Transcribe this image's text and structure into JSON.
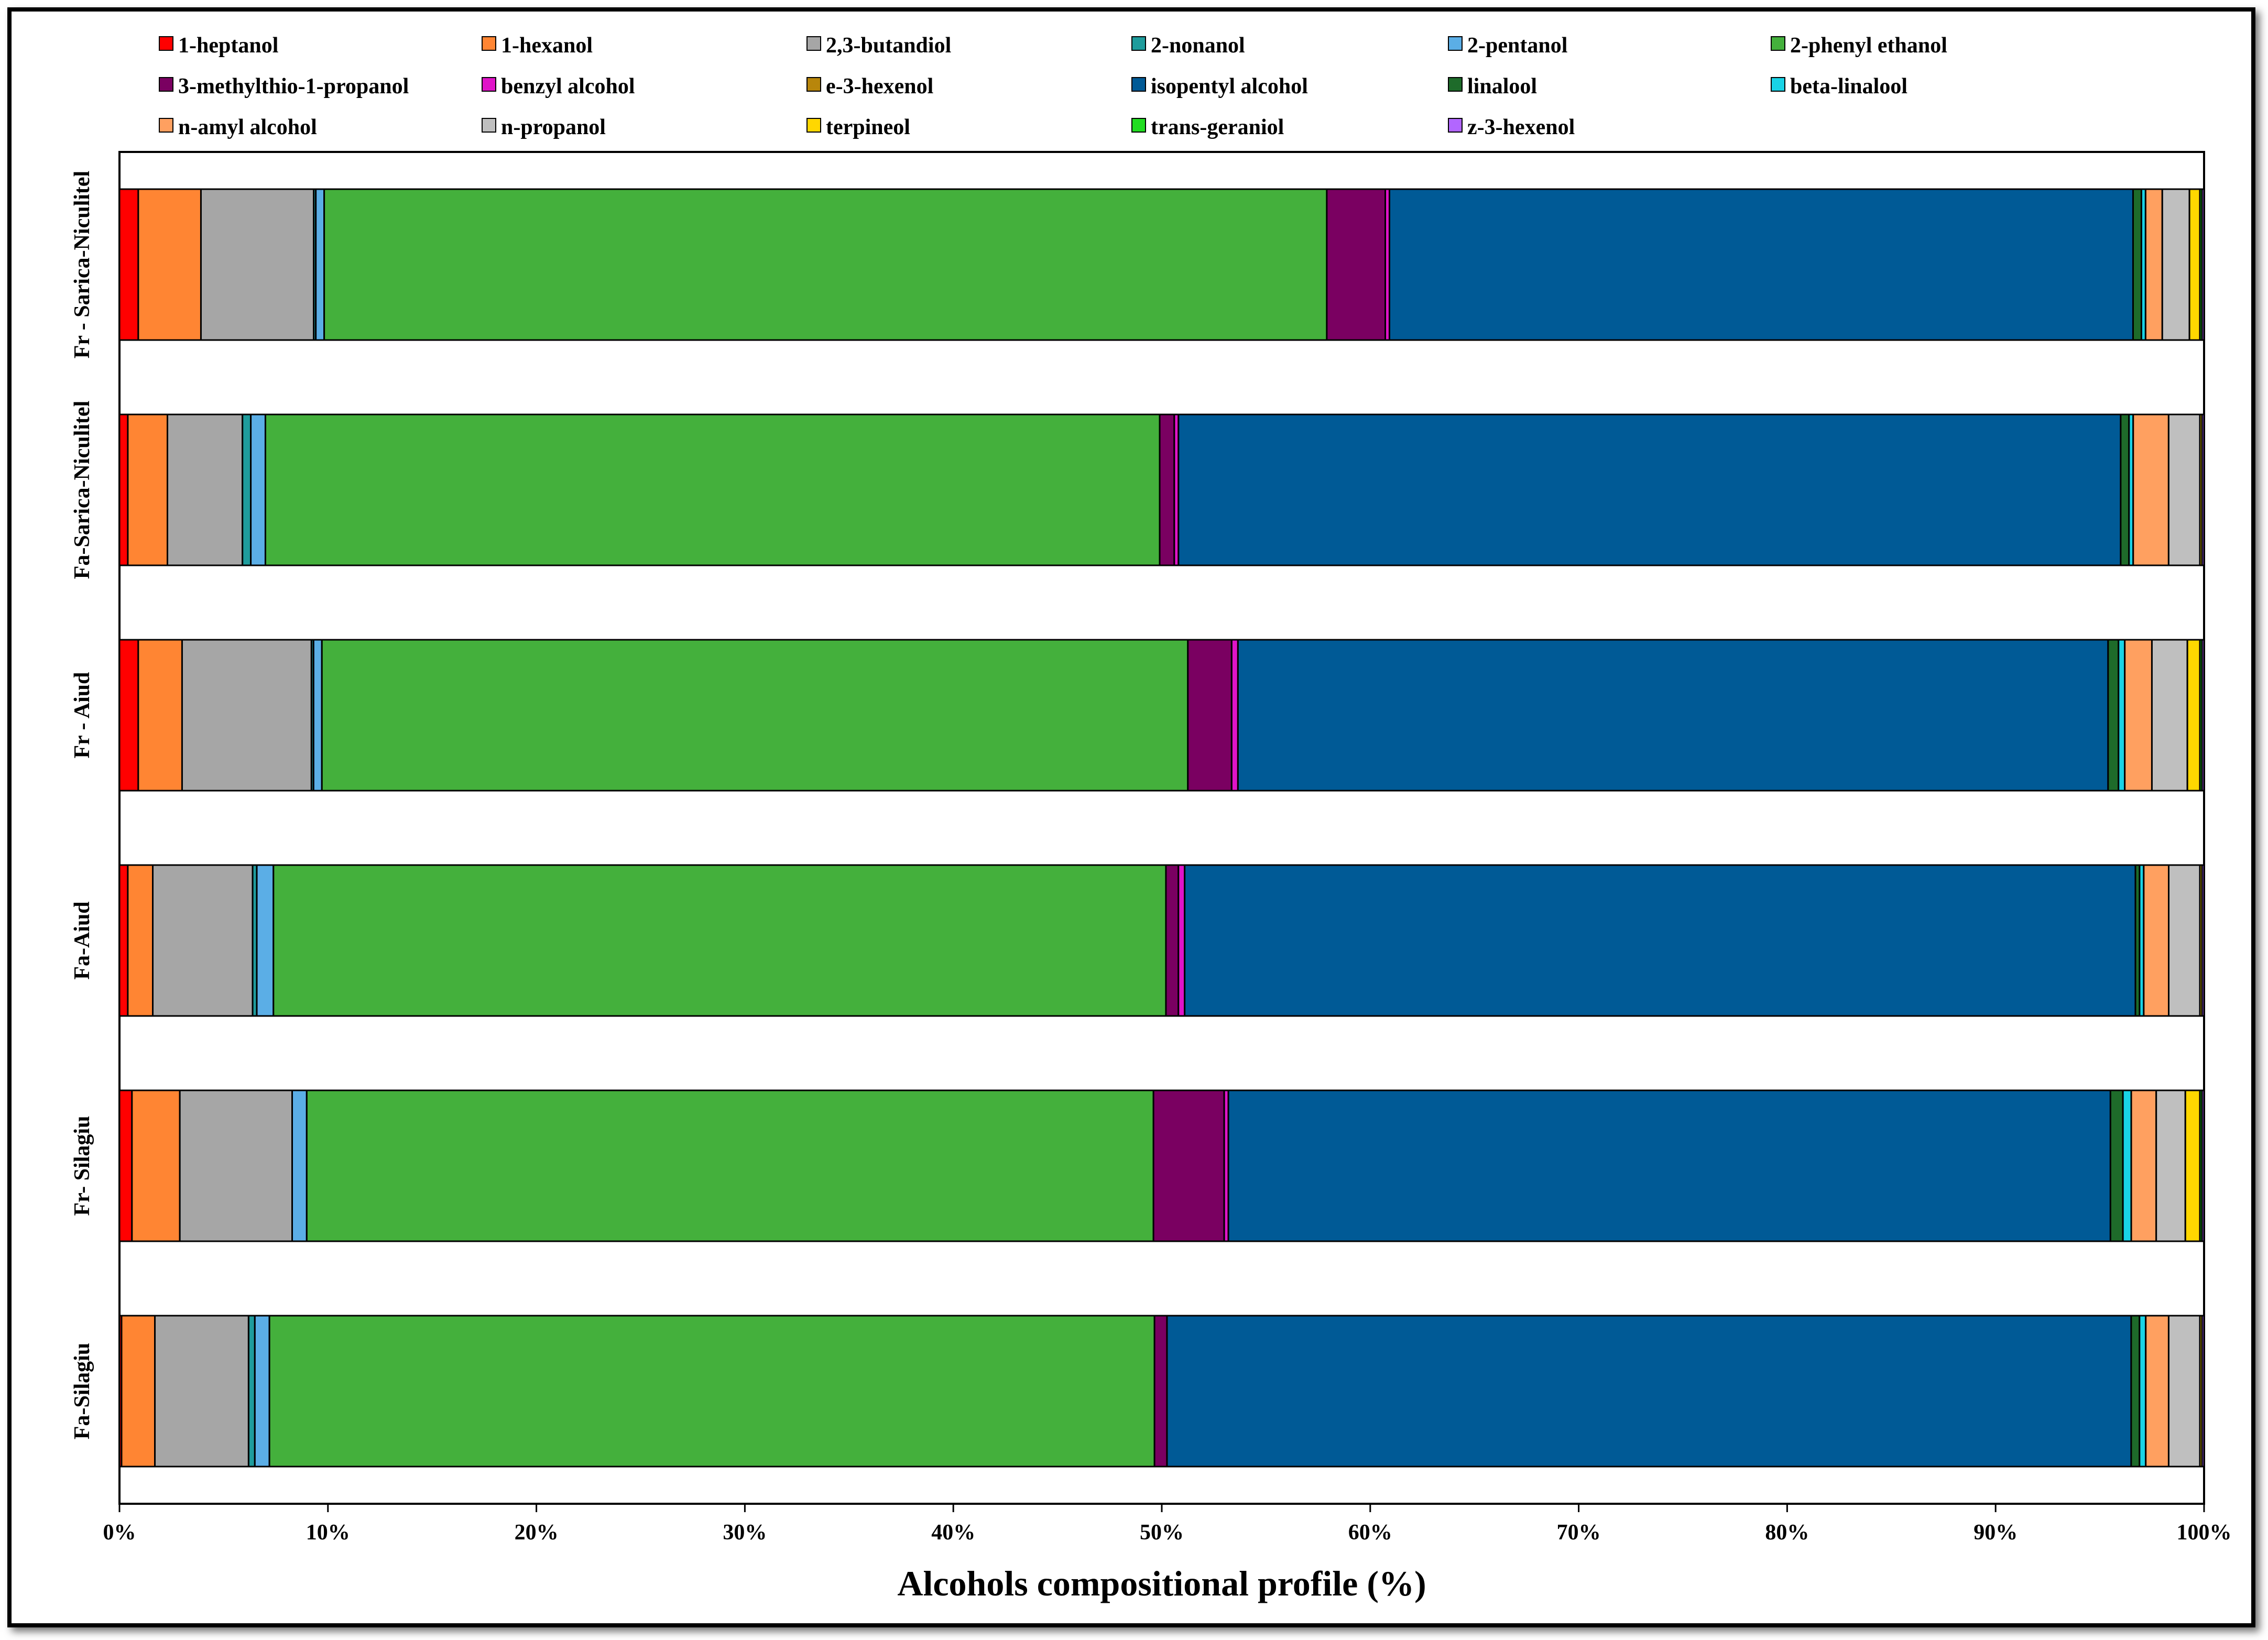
{
  "chart_data": {
    "type": "bar",
    "orientation": "horizontal",
    "stacked": "percent",
    "xlabel": "Alcohols compositional profile (%)",
    "xlim": [
      0,
      100
    ],
    "x_ticks": [
      "0%",
      "10%",
      "20%",
      "30%",
      "40%",
      "50%",
      "60%",
      "70%",
      "80%",
      "90%",
      "100%"
    ],
    "legend_position": "top",
    "categories": [
      "Fr - Sarica-Niculitel",
      "Fa-Sarica-Niculitel",
      "Fr - Aiud",
      "Fa-Aiud",
      "Fr- Silagiu",
      "Fa-Silagiu"
    ],
    "series": [
      {
        "name": "1-heptanol",
        "color": "#FF0000",
        "values": [
          0.9,
          0.4,
          0.9,
          0.4,
          0.6,
          0.1
        ]
      },
      {
        "name": "1-hexanol",
        "color": "#FF8533",
        "values": [
          3.0,
          1.9,
          2.1,
          1.2,
          2.3,
          1.6
        ]
      },
      {
        "name": "2,3-butandiol",
        "color": "#A6A6A6",
        "values": [
          5.4,
          3.6,
          6.2,
          4.8,
          5.4,
          4.5
        ]
      },
      {
        "name": "2-nonanol",
        "color": "#1F9C9C",
        "values": [
          0.1,
          0.4,
          0.1,
          0.2,
          0.0,
          0.3
        ]
      },
      {
        "name": "2-pentanol",
        "color": "#5BAEE6",
        "values": [
          0.4,
          0.7,
          0.4,
          0.8,
          0.7,
          0.7
        ]
      },
      {
        "name": "2-phenyl ethanol",
        "color": "#44B03C",
        "values": [
          48.0,
          42.9,
          41.5,
          42.9,
          40.7,
          42.5
        ]
      },
      {
        "name": "3-methylthio-1-propanol",
        "color": "#7A0061",
        "values": [
          2.8,
          0.7,
          2.1,
          0.6,
          3.4,
          0.6
        ]
      },
      {
        "name": "benzyl alcohol",
        "color": "#E014C8",
        "values": [
          0.2,
          0.2,
          0.3,
          0.3,
          0.2,
          0.0
        ]
      },
      {
        "name": "e-3-hexenol",
        "color": "#B8860B",
        "values": [
          0.0,
          0.0,
          0.0,
          0.0,
          0.0,
          0.0
        ]
      },
      {
        "name": "isopentyl alcohol",
        "color": "#005A96",
        "values": [
          35.6,
          45.2,
          41.7,
          45.7,
          42.4,
          46.3
        ]
      },
      {
        "name": "linalool",
        "color": "#1E6B2A",
        "values": [
          0.4,
          0.4,
          0.5,
          0.2,
          0.6,
          0.4
        ]
      },
      {
        "name": "beta-linalool",
        "color": "#19D3E6",
        "values": [
          0.2,
          0.2,
          0.3,
          0.2,
          0.4,
          0.3
        ]
      },
      {
        "name": "n-amyl alcohol",
        "color": "#FFA060",
        "values": [
          0.8,
          1.7,
          1.3,
          1.2,
          1.2,
          1.1
        ]
      },
      {
        "name": "n-propanol",
        "color": "#BFBFBF",
        "values": [
          1.3,
          1.5,
          1.7,
          1.5,
          1.4,
          1.5
        ]
      },
      {
        "name": "terpineol",
        "color": "#FFD700",
        "values": [
          0.5,
          0.1,
          0.6,
          0.1,
          0.7,
          0.1
        ]
      },
      {
        "name": "trans-geraniol",
        "color": "#22DD22",
        "values": [
          0.1,
          0.0,
          0.1,
          0.0,
          0.1,
          0.0
        ]
      },
      {
        "name": "z-3-hexenol",
        "color": "#B266FF",
        "values": [
          0.1,
          0.1,
          0.1,
          0.1,
          0.1,
          0.1
        ]
      }
    ]
  }
}
